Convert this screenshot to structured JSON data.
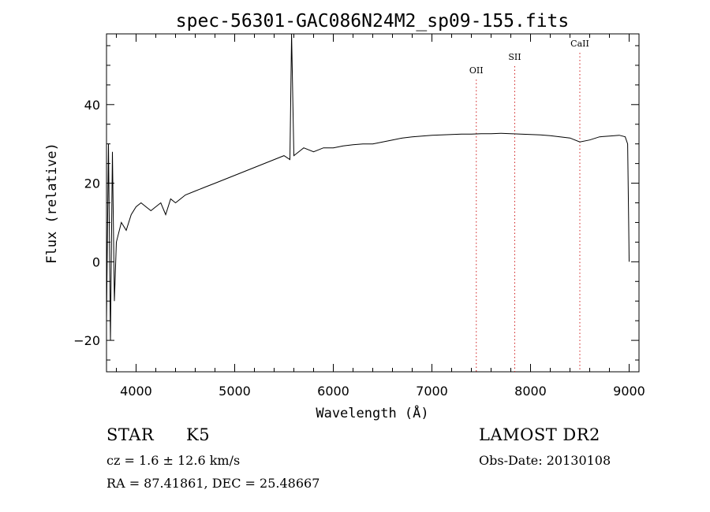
{
  "chart_data": {
    "type": "line",
    "title": "spec-56301-GAC086N24M2_sp09-155.fits",
    "xlabel": "Wavelength (Å)",
    "ylabel": "Flux (relative)",
    "xlim": [
      3700,
      9100
    ],
    "ylim": [
      -28,
      58
    ],
    "xticks": [
      4000,
      5000,
      6000,
      7000,
      8000,
      9000
    ],
    "yticks": [
      -20,
      0,
      20,
      40
    ],
    "grid": false,
    "series": [
      {
        "x": [
          3700,
          3720,
          3740,
          3760,
          3780,
          3800,
          3850,
          3900,
          3950,
          4000,
          4050,
          4100,
          4150,
          4200,
          4250,
          4300,
          4350,
          4400,
          4450,
          4500,
          4600,
          4700,
          4800,
          4900,
          5000,
          5100,
          5200,
          5300,
          5400,
          5500,
          5560,
          5577,
          5600,
          5700,
          5800,
          5900,
          6000,
          6100,
          6200,
          6300,
          6400,
          6500,
          6600,
          6700,
          6800,
          6900,
          7000,
          7100,
          7200,
          7300,
          7400,
          7500,
          7600,
          7700,
          7800,
          7900,
          8000,
          8100,
          8200,
          8300,
          8400,
          8500,
          8600,
          8700,
          8800,
          8900,
          8960,
          8985,
          8995,
          9000
        ],
        "y": [
          -15,
          30,
          -20,
          28,
          -10,
          5,
          10,
          8,
          12,
          14,
          15,
          14,
          13,
          14,
          15,
          12,
          16,
          15,
          16,
          17,
          18,
          19,
          20,
          21,
          22,
          23,
          24,
          25,
          26,
          27,
          26,
          58,
          27,
          29,
          28,
          29,
          29,
          29.5,
          29.8,
          30,
          30,
          30.5,
          31,
          31.5,
          31.8,
          32,
          32.2,
          32.3,
          32.4,
          32.5,
          32.5,
          32.6,
          32.6,
          32.7,
          32.6,
          32.5,
          32.4,
          32.3,
          32.1,
          31.8,
          31.5,
          30.5,
          31,
          31.8,
          32,
          32.2,
          31.8,
          30,
          10,
          0
        ]
      }
    ],
    "lines": [
      {
        "label": "OII",
        "x": 7450
      },
      {
        "label": "SII",
        "x": 7840
      },
      {
        "label": "CaII",
        "x": 8500
      }
    ]
  },
  "info": {
    "class_label": "STAR",
    "subclass": "K5",
    "survey": "LAMOST DR2",
    "cz": "cz = 1.6 ± 12.6 km/s",
    "obs_date": "Obs-Date: 20130108",
    "coords": "RA =  87.41861, DEC =  25.48667"
  }
}
